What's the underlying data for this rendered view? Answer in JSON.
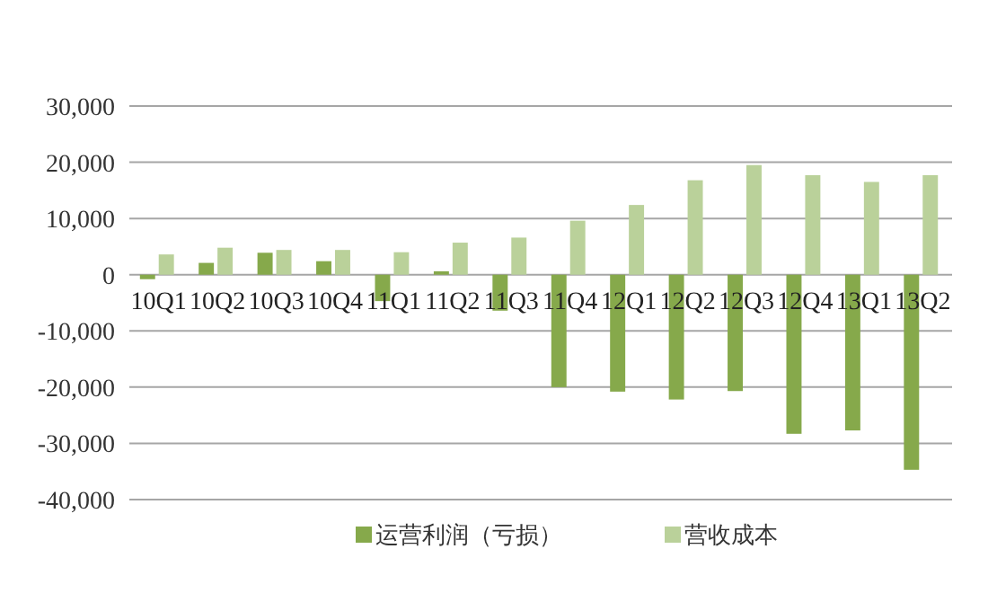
{
  "chart_data": {
    "type": "bar",
    "categories": [
      "10Q1",
      "10Q2",
      "10Q3",
      "10Q4",
      "11Q1",
      "11Q2",
      "11Q3",
      "11Q4",
      "12Q1",
      "12Q2",
      "12Q3",
      "12Q4",
      "13Q1",
      "13Q2"
    ],
    "series": [
      {
        "name": "运营利润（亏损）",
        "color": "#86a94b",
        "values": [
          -800,
          2100,
          3900,
          2400,
          -4700,
          600,
          -6400,
          -20000,
          -20800,
          -22200,
          -20700,
          -28300,
          -27700,
          -34700
        ]
      },
      {
        "name": "营收成本",
        "color": "#bad19a",
        "values": [
          3600,
          4800,
          4400,
          4400,
          4000,
          5700,
          6600,
          9600,
          12400,
          16800,
          19500,
          17700,
          16500,
          17700
        ]
      }
    ],
    "ylim": [
      -40000,
      30000
    ],
    "yticks": [
      {
        "value": -40000,
        "label": "-40,000"
      },
      {
        "value": -30000,
        "label": "-30,000"
      },
      {
        "value": -20000,
        "label": "-20,000"
      },
      {
        "value": -10000,
        "label": "-10,000"
      },
      {
        "value": 0,
        "label": "0"
      },
      {
        "value": 10000,
        "label": "10,000"
      },
      {
        "value": 20000,
        "label": "20,000"
      },
      {
        "value": 30000,
        "label": "30,000"
      }
    ],
    "grid": "y",
    "legend": "bottom"
  }
}
